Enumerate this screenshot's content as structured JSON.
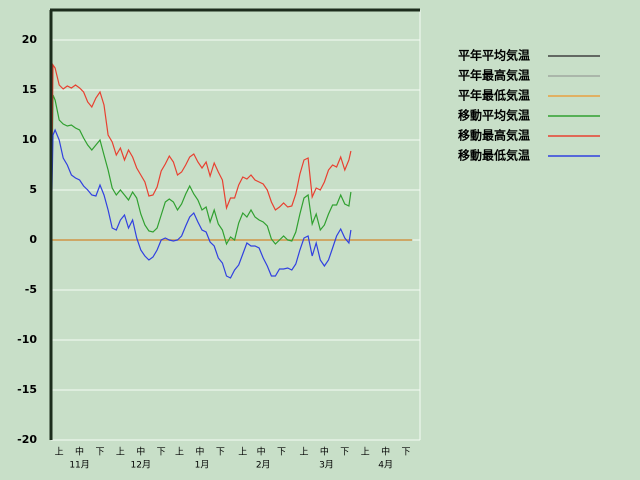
{
  "chart_data": {
    "type": "line",
    "xlim": [
      0,
      181
    ],
    "ylim": [
      -20,
      23
    ],
    "yticks": [
      -20,
      -15,
      -10,
      -5,
      0,
      5,
      10,
      15,
      20
    ],
    "grid": true,
    "xticks": [
      {
        "value": 4,
        "label": "上"
      },
      {
        "value": 14,
        "label": "中"
      },
      {
        "value": 24,
        "label": "下"
      },
      {
        "value": 34,
        "label": "上"
      },
      {
        "value": 44,
        "label": "中"
      },
      {
        "value": 54,
        "label": "下"
      },
      {
        "value": 63,
        "label": "上"
      },
      {
        "value": 73,
        "label": "中"
      },
      {
        "value": 83,
        "label": "下"
      },
      {
        "value": 94,
        "label": "上"
      },
      {
        "value": 103,
        "label": "中"
      },
      {
        "value": 113,
        "label": "下"
      },
      {
        "value": 124,
        "label": "上"
      },
      {
        "value": 134,
        "label": "中"
      },
      {
        "value": 144,
        "label": "下"
      },
      {
        "value": 154,
        "label": "上"
      },
      {
        "value": 164,
        "label": "中"
      },
      {
        "value": 174,
        "label": "下"
      }
    ],
    "month_labels": [
      {
        "value": 14,
        "label": "11月"
      },
      {
        "value": 44,
        "label": "12月"
      },
      {
        "value": 74,
        "label": "1月"
      },
      {
        "value": 104,
        "label": "2月"
      },
      {
        "value": 135,
        "label": "3月"
      },
      {
        "value": 164,
        "label": "4月"
      }
    ],
    "legend": "right",
    "series": [
      {
        "name": "平年平均気温",
        "color": "#404040",
        "x": [
          0,
          177
        ],
        "values": [
          0,
          0
        ]
      },
      {
        "name": "平年最高気温",
        "color": "#a0a8a0",
        "x": [
          0,
          177
        ],
        "values": [
          0,
          0
        ]
      },
      {
        "name": "平年最低気温",
        "color": "#e8a040",
        "x": [
          0,
          177
        ],
        "values": [
          0,
          0
        ]
      },
      {
        "name": "移動平均気温",
        "color": "#30a030",
        "x": [
          0,
          1,
          2,
          4,
          6,
          8,
          10,
          12,
          14,
          16,
          18,
          20,
          22,
          24,
          26,
          28,
          30,
          32,
          34,
          36,
          38,
          40,
          42,
          44,
          46,
          48,
          50,
          52,
          54,
          56,
          58,
          60,
          62,
          64,
          66,
          68,
          70,
          72,
          74,
          76,
          78,
          80,
          82,
          84,
          86,
          88,
          90,
          92,
          94,
          96,
          98,
          100,
          102,
          104,
          106,
          108,
          110,
          112,
          114,
          116,
          118,
          120,
          122,
          124,
          126,
          128,
          130,
          132,
          134,
          136,
          138,
          140,
          142,
          144,
          146,
          147
        ],
        "values": [
          0,
          14.5,
          14,
          12,
          11.6,
          11.4,
          11.5,
          11.2,
          11,
          10.2,
          9.5,
          9,
          9.5,
          10,
          8.5,
          7,
          5.2,
          4.5,
          5,
          4.5,
          4,
          4.8,
          4.2,
          2.6,
          1.5,
          0.9,
          0.8,
          1.2,
          2.5,
          3.8,
          4.1,
          3.8,
          3,
          3.6,
          4.6,
          5.4,
          4.6,
          4,
          3,
          3.3,
          1.8,
          3,
          1.6,
          1,
          -0.4,
          0.3,
          0,
          1.7,
          2.7,
          2.3,
          3,
          2.3,
          2,
          1.8,
          1.4,
          0.1,
          -0.4,
          0,
          0.4,
          0,
          -0.1,
          0.8,
          2.6,
          4.2,
          4.5,
          1.6,
          2.6,
          1,
          1.5,
          2.6,
          3.5,
          3.5,
          4.5,
          3.6,
          3.4,
          4.8
        ]
      },
      {
        "name": "移動最高気温",
        "color": "#e84030",
        "x": [
          0,
          1,
          2,
          4,
          6,
          8,
          10,
          12,
          14,
          16,
          18,
          20,
          22,
          24,
          26,
          28,
          30,
          32,
          34,
          36,
          38,
          40,
          42,
          44,
          46,
          48,
          50,
          52,
          54,
          56,
          58,
          60,
          62,
          64,
          66,
          68,
          70,
          72,
          74,
          76,
          78,
          80,
          82,
          84,
          86,
          88,
          90,
          92,
          94,
          96,
          98,
          100,
          102,
          104,
          106,
          108,
          110,
          112,
          114,
          116,
          118,
          120,
          122,
          124,
          126,
          128,
          130,
          132,
          134,
          136,
          138,
          140,
          142,
          144,
          146,
          147
        ],
        "values": [
          0,
          17.5,
          17.2,
          15.5,
          15.1,
          15.4,
          15.2,
          15.5,
          15.2,
          14.8,
          13.8,
          13.3,
          14.2,
          14.8,
          13.5,
          10.5,
          9.8,
          8.5,
          9.2,
          8,
          9,
          8.3,
          7.2,
          6.5,
          5.8,
          4.4,
          4.5,
          5.3,
          6.9,
          7.6,
          8.4,
          7.8,
          6.5,
          6.8,
          7.5,
          8.3,
          8.6,
          7.8,
          7.2,
          7.8,
          6.4,
          7.7,
          6.8,
          6,
          3.2,
          4.2,
          4.2,
          5.5,
          6.3,
          6.1,
          6.5,
          6,
          5.8,
          5.6,
          5,
          3.8,
          3,
          3.3,
          3.7,
          3.3,
          3.4,
          4.6,
          6.6,
          8,
          8.2,
          4.3,
          5.2,
          5,
          5.8,
          7,
          7.5,
          7.3,
          8.3,
          7,
          8,
          8.9
        ]
      },
      {
        "name": "移動最低気温",
        "color": "#3040e0",
        "x": [
          0,
          1,
          2,
          4,
          6,
          8,
          10,
          12,
          14,
          16,
          18,
          20,
          22,
          24,
          26,
          28,
          30,
          32,
          34,
          36,
          38,
          40,
          42,
          44,
          46,
          48,
          50,
          52,
          54,
          56,
          58,
          60,
          62,
          64,
          66,
          68,
          70,
          72,
          74,
          76,
          78,
          80,
          82,
          84,
          86,
          88,
          90,
          92,
          94,
          96,
          98,
          100,
          102,
          104,
          106,
          108,
          110,
          112,
          114,
          116,
          118,
          120,
          122,
          124,
          126,
          128,
          130,
          132,
          134,
          136,
          138,
          140,
          142,
          144,
          146,
          147
        ],
        "values": [
          0,
          10.5,
          11,
          10,
          8.2,
          7.5,
          6.5,
          6.2,
          6,
          5.4,
          5,
          4.5,
          4.4,
          5.5,
          4.5,
          3,
          1.2,
          1,
          2,
          2.5,
          1.2,
          2,
          0.2,
          -1,
          -1.6,
          -2,
          -1.7,
          -1,
          0,
          0.2,
          0,
          -0.1,
          0,
          0.4,
          1.4,
          2.3,
          2.7,
          1.8,
          1,
          0.8,
          -0.2,
          -0.6,
          -1.8,
          -2.3,
          -3.6,
          -3.8,
          -3,
          -2.5,
          -1.4,
          -0.3,
          -0.6,
          -0.6,
          -0.8,
          -1.8,
          -2.6,
          -3.6,
          -3.6,
          -2.9,
          -2.9,
          -2.8,
          -3,
          -2.4,
          -1,
          0.2,
          0.4,
          -1.6,
          -0.3,
          -2,
          -2.6,
          -2,
          -0.8,
          0.4,
          1.1,
          0.2,
          -0.3,
          1
        ]
      }
    ]
  }
}
